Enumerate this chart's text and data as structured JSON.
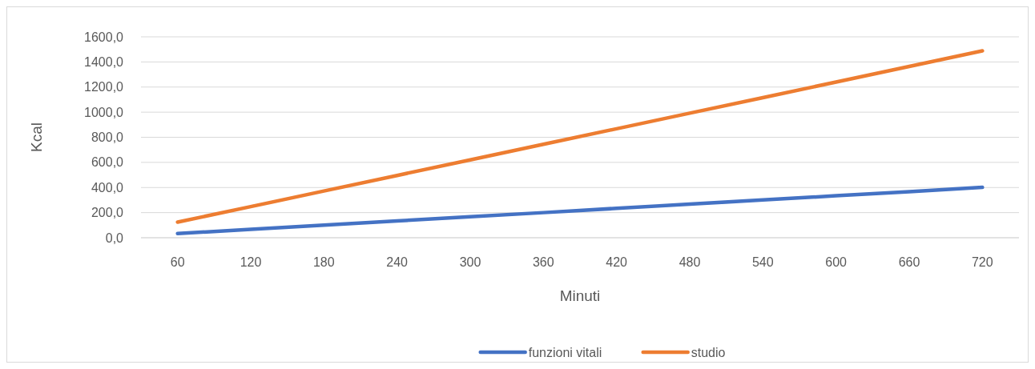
{
  "chart_data": {
    "type": "line",
    "xlabel": "Minuti",
    "ylabel": "Kcal",
    "categories": [
      "60",
      "120",
      "180",
      "240",
      "300",
      "360",
      "420",
      "480",
      "540",
      "600",
      "660",
      "720"
    ],
    "series": [
      {
        "name": "funzioni vitali",
        "color": "#4472c4",
        "values": [
          33,
          67,
          100,
          134,
          167,
          200,
          234,
          267,
          301,
          334,
          367,
          401
        ]
      },
      {
        "name": "studio",
        "color": "#ed7d31",
        "values": [
          124,
          248,
          372,
          496,
          620,
          744,
          868,
          992,
          1116,
          1240,
          1364,
          1488
        ]
      }
    ],
    "ylim": [
      0,
      1600
    ],
    "yticks": [
      {
        "value": 0,
        "label": "0,0"
      },
      {
        "value": 200,
        "label": "200,0"
      },
      {
        "value": 400,
        "label": "400,0"
      },
      {
        "value": 600,
        "label": "600,0"
      },
      {
        "value": 800,
        "label": "800,0"
      },
      {
        "value": 1000,
        "label": "1000,0"
      },
      {
        "value": 1200,
        "label": "1200,0"
      },
      {
        "value": 1400,
        "label": "1400,0"
      },
      {
        "value": 1600,
        "label": "1600,0"
      }
    ],
    "grid": "y",
    "legend": "bottom",
    "line_style": "solid",
    "marker": "none"
  }
}
